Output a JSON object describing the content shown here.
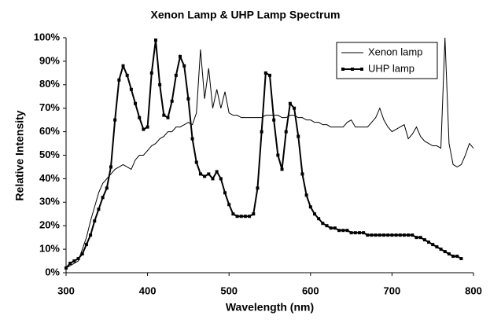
{
  "chart_data": {
    "type": "line",
    "title": "Xenon Lamp & UHP Lamp Spectrum",
    "x_label": "Wavelength (nm)",
    "y_label": "Relative Intensity",
    "x": [
      300,
      305,
      310,
      315,
      320,
      325,
      330,
      335,
      340,
      345,
      350,
      355,
      360,
      365,
      370,
      375,
      380,
      385,
      390,
      395,
      400,
      405,
      410,
      415,
      420,
      425,
      430,
      435,
      440,
      445,
      450,
      455,
      460,
      465,
      470,
      475,
      480,
      485,
      490,
      495,
      500,
      505,
      510,
      515,
      520,
      525,
      530,
      535,
      540,
      545,
      550,
      555,
      560,
      565,
      570,
      575,
      580,
      585,
      590,
      595,
      600,
      605,
      610,
      615,
      620,
      625,
      630,
      635,
      640,
      645,
      650,
      655,
      660,
      665,
      670,
      675,
      680,
      685,
      690,
      695,
      700,
      705,
      710,
      715,
      720,
      725,
      730,
      735,
      740,
      745,
      750,
      755,
      760,
      765,
      770,
      775,
      780,
      785,
      790,
      795,
      800
    ],
    "series": [
      {
        "name": "Xenon lamp",
        "color": "#000000",
        "markers": false,
        "values": [
          2,
          3,
          4,
          5,
          10,
          15,
          22,
          28,
          34,
          38,
          40,
          42,
          44,
          45,
          46,
          45,
          44,
          48,
          50,
          50,
          52,
          54,
          55,
          57,
          58,
          60,
          60,
          62,
          62,
          63,
          64,
          63,
          68,
          95,
          74,
          87,
          70,
          78,
          70,
          77,
          68,
          67,
          67,
          66,
          66,
          66,
          66,
          66,
          66,
          67,
          67,
          67,
          67,
          66,
          66,
          67,
          67,
          66,
          66,
          65,
          65,
          64,
          64,
          63,
          63,
          62,
          62,
          62,
          62,
          64,
          65,
          62,
          62,
          62,
          62,
          64,
          66,
          70,
          65,
          62,
          60,
          61,
          62,
          63,
          57,
          59,
          62,
          58,
          56,
          55,
          54,
          54,
          53,
          100,
          55,
          46,
          45,
          46,
          50,
          55,
          53
        ]
      },
      {
        "name": "UHP lamp",
        "color": "#000000",
        "markers": true,
        "values": [
          2,
          4,
          5,
          6,
          8,
          12,
          16,
          22,
          27,
          32,
          36,
          45,
          65,
          82,
          88,
          84,
          78,
          72,
          66,
          61,
          62,
          85,
          99,
          80,
          67,
          66,
          73,
          84,
          92,
          88,
          74,
          57,
          47,
          42,
          41,
          42,
          40,
          43,
          40,
          34,
          29,
          25,
          24,
          24,
          24,
          24,
          25,
          36,
          60,
          85,
          84,
          65,
          50,
          44,
          60,
          72,
          70,
          58,
          42,
          33,
          28,
          25,
          23,
          21,
          20,
          19,
          19,
          18,
          18,
          18,
          17,
          17,
          17,
          17,
          16,
          16,
          16,
          16,
          16,
          16,
          16,
          16,
          16,
          16,
          16,
          16,
          15,
          15,
          14,
          13,
          12,
          11,
          10,
          9,
          8,
          7,
          7,
          6,
          null,
          null,
          null
        ]
      }
    ],
    "xlim": [
      300,
      800
    ],
    "xticks": [
      300,
      400,
      500,
      600,
      700,
      800
    ],
    "ylim": [
      0,
      100
    ],
    "yticks": [
      {
        "value": 0,
        "label": "0%"
      },
      {
        "value": 10,
        "label": "10%"
      },
      {
        "value": 20,
        "label": "20%"
      },
      {
        "value": 30,
        "label": "30%"
      },
      {
        "value": 40,
        "label": "40%"
      },
      {
        "value": 50,
        "label": "50%"
      },
      {
        "value": 60,
        "label": "60%"
      },
      {
        "value": 70,
        "label": "70%"
      },
      {
        "value": 80,
        "label": "80%"
      },
      {
        "value": 90,
        "label": "90%"
      },
      {
        "value": 100,
        "label": "100%"
      }
    ],
    "legend": "top-right",
    "grid": false
  }
}
